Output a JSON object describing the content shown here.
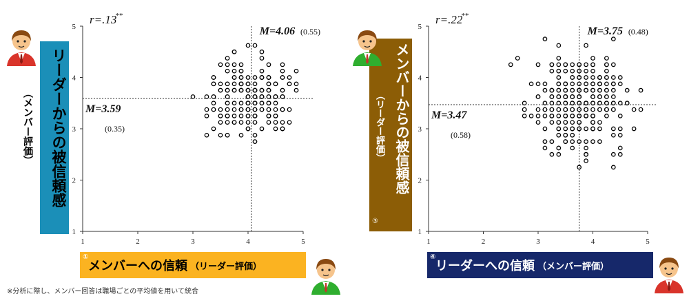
{
  "colors": {
    "teal": "#1b8fb8",
    "gold": "#fbb321",
    "brown": "#8c5d06",
    "navy": "#16286a",
    "avatar_red": "#d9342b",
    "avatar_green": "#2fae2f",
    "skin": "#f6c48c",
    "hair": "#8a4a12"
  },
  "left": {
    "vlabel_main": "リーダーからの被信頼感",
    "vlabel_sub": "（メンバー評価）",
    "vlabel_badge": "②",
    "hlabel_badge": "①",
    "hlabel_main": "メンバーへの信頼",
    "hlabel_sub": "（リーダー評価）",
    "avatar_left": "leader-avatar",
    "avatar_right": "member-avatar"
  },
  "right": {
    "vlabel_main": "メンバーからの被信頼感",
    "vlabel_sub": "（リーダー評価）",
    "vlabel_badge": "③",
    "hlabel_badge": "④",
    "hlabel_main": "リーダーへの信頼",
    "hlabel_sub": "（メンバー評価）",
    "avatar_left": "member-avatar",
    "avatar_right": "leader-avatar"
  },
  "footnote": "※分析に際し、メンバー回答は職場ごとの平均値を用いて統合",
  "chart_data": [
    {
      "type": "scatter",
      "xlim": [
        1,
        5
      ],
      "ylim": [
        1,
        5
      ],
      "xticks": [
        "1",
        "2",
        "3",
        "4",
        "5"
      ],
      "yticks": [
        "1",
        "2",
        "3",
        "4",
        "5"
      ],
      "r_label": "r=.13",
      "r_sig": "**",
      "mean_x": 4.06,
      "mean_x_label": "M=4.06",
      "sd_x_label": "(0.55)",
      "mean_y": 3.59,
      "mean_y_label": "M=3.59",
      "sd_y_label": "(0.35)",
      "seed": 1301,
      "n": 230
    },
    {
      "type": "scatter",
      "xlim": [
        1,
        5
      ],
      "ylim": [
        1,
        5
      ],
      "xticks": [
        "1",
        "2",
        "3",
        "4",
        "5"
      ],
      "yticks": [
        "1",
        "2",
        "3",
        "4",
        "5"
      ],
      "r_label": "r=.22",
      "r_sig": "**",
      "mean_x": 3.75,
      "mean_x_label": "M=3.75",
      "sd_x_label": "(0.48)",
      "mean_y": 3.47,
      "mean_y_label": "M=3.47",
      "sd_y_label": "(0.58)",
      "seed": 2207,
      "n": 310
    }
  ]
}
